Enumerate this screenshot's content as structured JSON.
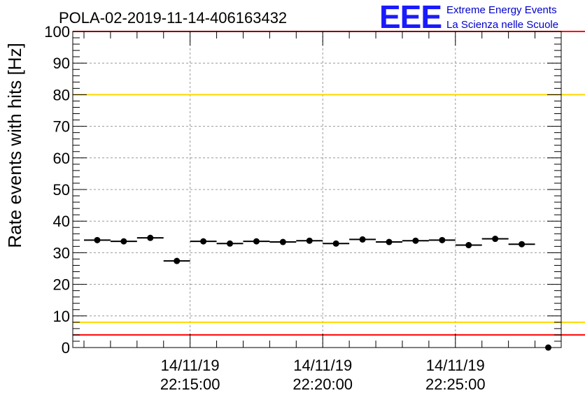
{
  "logo": {
    "mark": "EEE",
    "line1": "Extreme Energy Events",
    "line2": "La Scienza nelle Scuole"
  },
  "colors": {
    "red_limit": "#ff0000",
    "yellow_limit": "#ffd700",
    "marker": "#000000",
    "logo": "#1a1aff"
  },
  "chart_data": {
    "type": "scatter",
    "title": "POLA-02-2019-11-14-406163432",
    "ylabel": "Rate events with hits [Hz]",
    "xlabel": "",
    "ylim": [
      0,
      100
    ],
    "y_ticks": [
      0,
      10,
      20,
      30,
      40,
      50,
      60,
      70,
      80,
      90,
      100
    ],
    "x_unit": "minutes after 22:11:00 on 14/11/19",
    "xlim": [
      0,
      17.5
    ],
    "x_tick_labels": [
      {
        "x": 4,
        "date": "14/11/19",
        "time": "22:15:00"
      },
      {
        "x": 9,
        "date": "14/11/19",
        "time": "22:20:00"
      },
      {
        "x": 14,
        "date": "14/11/19",
        "time": "22:25:00"
      }
    ],
    "bin_width": 1,
    "grid": true,
    "series": [
      {
        "values": [
          {
            "x": 0.5,
            "y": 34.0
          },
          {
            "x": 1.5,
            "y": 33.6
          },
          {
            "x": 2.5,
            "y": 34.7
          },
          {
            "x": 3.5,
            "y": 27.4
          },
          {
            "x": 4.5,
            "y": 33.6
          },
          {
            "x": 5.5,
            "y": 32.9
          },
          {
            "x": 6.5,
            "y": 33.6
          },
          {
            "x": 7.5,
            "y": 33.4
          },
          {
            "x": 8.5,
            "y": 33.8
          },
          {
            "x": 9.5,
            "y": 32.9
          },
          {
            "x": 10.5,
            "y": 34.2
          },
          {
            "x": 11.5,
            "y": 33.4
          },
          {
            "x": 12.5,
            "y": 33.8
          },
          {
            "x": 13.5,
            "y": 34.0
          },
          {
            "x": 14.5,
            "y": 32.4
          },
          {
            "x": 15.5,
            "y": 34.4
          },
          {
            "x": 16.5,
            "y": 32.7
          },
          {
            "x": 17.5,
            "y": 0
          }
        ]
      }
    ],
    "limit_lines": [
      {
        "y": 100,
        "color": "red"
      },
      {
        "y": 80,
        "color": "yellow"
      },
      {
        "y": 8,
        "color": "yellow"
      },
      {
        "y": 4,
        "color": "red"
      }
    ]
  }
}
